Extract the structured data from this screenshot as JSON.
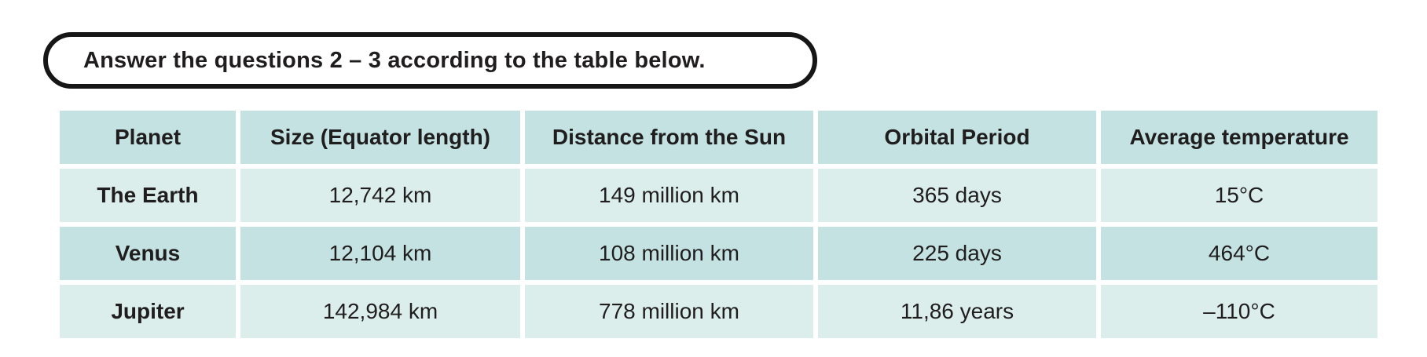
{
  "instruction": {
    "text": "Answer the questions 2 – 3 according to the table below."
  },
  "table": {
    "columns": [
      "Planet",
      "Size (Equator length)",
      "Distance from the Sun",
      "Orbital Period",
      "Average temperature"
    ],
    "rows": [
      {
        "planet": "The Earth",
        "size": "12,742 km",
        "distance": "149 million km",
        "orbital_period": "365 days",
        "avg_temperature": "15°C"
      },
      {
        "planet": "Venus",
        "size": "12,104 km",
        "distance": "108 million km",
        "orbital_period": "225 days",
        "avg_temperature": "464°C"
      },
      {
        "planet": "Jupiter",
        "size": "142,984 km",
        "distance": "778 million km",
        "orbital_period": "11,86 years",
        "avg_temperature": "–110°C"
      }
    ]
  },
  "colors": {
    "cell_dark_teal": "#c4e2e1",
    "cell_light_teal": "#dbeeec",
    "text_ink": "#1f1d1e",
    "banner_border": "#161616",
    "page_background": "#ffffff"
  },
  "chart_data": {
    "type": "table",
    "title": "",
    "columns": [
      "Planet",
      "Size (Equator length)",
      "Distance from the Sun",
      "Orbital Period",
      "Average temperature"
    ],
    "rows": [
      [
        "The Earth",
        "12,742 km",
        "149 million km",
        "365 days",
        "15°C"
      ],
      [
        "Venus",
        "12,104 km",
        "108 million km",
        "225 days",
        "464°C"
      ],
      [
        "Jupiter",
        "142,984 km",
        "778 million km",
        "11,86 years",
        "–110°C"
      ]
    ]
  }
}
